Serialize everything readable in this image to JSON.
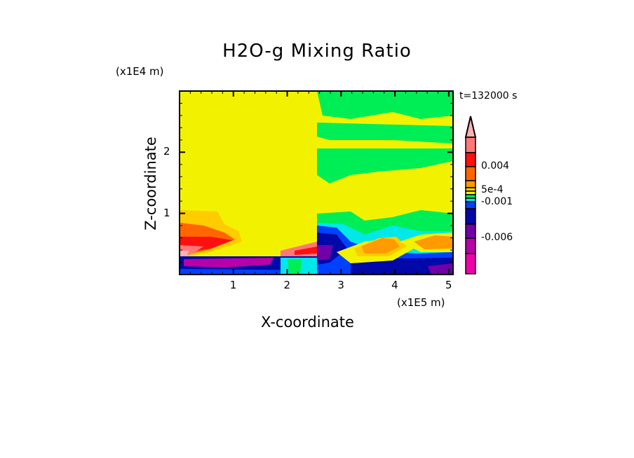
{
  "chart_data": {
    "type": "heatmap",
    "title": "H2O-g Mixing Ratio",
    "xlabel": "X-coordinate",
    "ylabel": "Z-coordinate",
    "x_scale_label": "(x1E5 m)",
    "y_scale_label": "(x1E4 m)",
    "time_label": "t=132000 s",
    "xlim": [
      0,
      5.08
    ],
    "ylim": [
      0,
      3.0
    ],
    "x_ticks": [
      "1",
      "2",
      "3",
      "4",
      "5"
    ],
    "x_tick_values": [
      1,
      2,
      3,
      4,
      5
    ],
    "y_ticks": [
      "1",
      "2"
    ],
    "y_tick_values": [
      1,
      2
    ],
    "colorbar": {
      "labels": [
        "0.004",
        "5e-4",
        "-0.001",
        "-0.006"
      ],
      "label_levels": [
        0.004,
        0.0005,
        -0.001,
        -0.006
      ],
      "colors_top_to_bottom": [
        "#ffb0b0",
        "#ff7878",
        "#ff1010",
        "#ff6600",
        "#ff9a00",
        "#ffcc00",
        "#f2f200",
        "#00ee55",
        "#00e8e8",
        "#0040ff",
        "#0008a8",
        "#7000a8",
        "#b800a8",
        "#ee00aa"
      ],
      "extend": "max"
    }
  }
}
